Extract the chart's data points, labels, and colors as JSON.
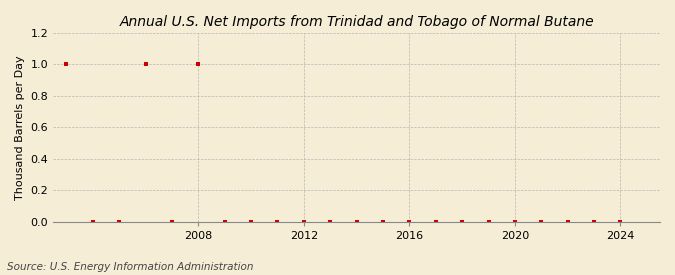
{
  "title": "Annual U.S. Net Imports from Trinidad and Tobago of Normal Butane",
  "ylabel": "Thousand Barrels per Day",
  "source": "Source: U.S. Energy Information Administration",
  "background_color": "#f5edd6",
  "plot_background_color": "#f5edd6",
  "years": [
    2003,
    2004,
    2005,
    2006,
    2007,
    2008,
    2009,
    2010,
    2011,
    2012,
    2013,
    2014,
    2015,
    2016,
    2017,
    2018,
    2019,
    2020,
    2021,
    2022,
    2023,
    2024
  ],
  "values": [
    1.0,
    0.0,
    0.0,
    1.0,
    0.0,
    1.0,
    0.0,
    0.0,
    0.0,
    0.0,
    0.0,
    0.0,
    0.0,
    0.0,
    0.0,
    0.0,
    0.0,
    0.0,
    0.0,
    0.0,
    0.0,
    0.0
  ],
  "marker_color": "#cc0000",
  "marker": "s",
  "marker_size": 3,
  "ylim": [
    0.0,
    1.2
  ],
  "yticks": [
    0.0,
    0.2,
    0.4,
    0.6,
    0.8,
    1.0,
    1.2
  ],
  "xlim": [
    2002.5,
    2025.5
  ],
  "xticks": [
    2008,
    2012,
    2016,
    2020,
    2024
  ],
  "title_fontsize": 10,
  "label_fontsize": 8,
  "tick_fontsize": 8,
  "source_fontsize": 7.5
}
